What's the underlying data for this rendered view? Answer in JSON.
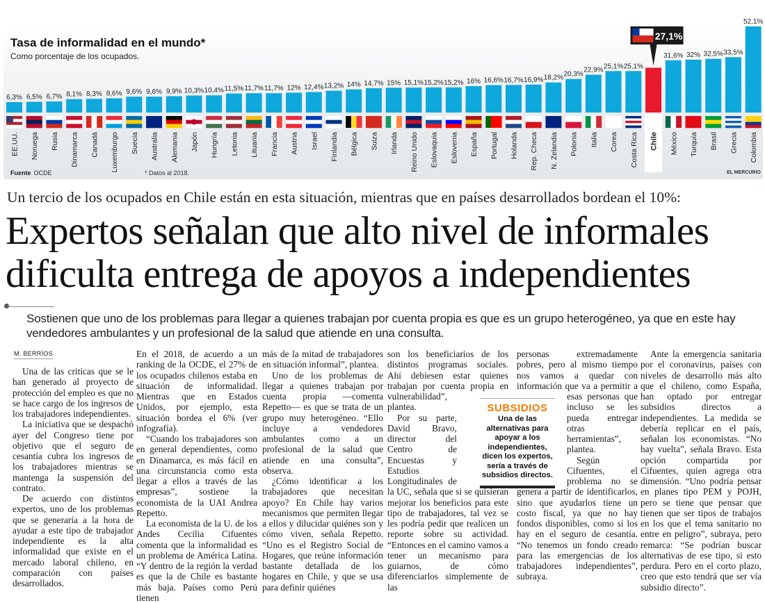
{
  "chart_data": {
    "type": "bar",
    "title": "Tasa de informalidad en el mundo*",
    "subtitle": "Como porcentaje de los ocupados.",
    "source_label": "Fuente",
    "source": "OCDE",
    "note": "* Datos al 2018.",
    "credit": "EL MERCURIO",
    "ylim": [
      0,
      55
    ],
    "bar_color": "#0fa8dc",
    "highlight_color": "#e8192c",
    "highlight": "Chile",
    "highlight_label": "27,1%",
    "categories": [
      "EE.UU.",
      "Noruega",
      "Rusia",
      "Dinamarca",
      "Canadá",
      "Luxemburgo",
      "Suecia",
      "Australia",
      "Alemania",
      "Japón",
      "Hungría",
      "Letonia",
      "Lituania",
      "Francia",
      "Austria",
      "Israel",
      "Finlandia",
      "Bélgica",
      "Suiza",
      "Irlanda",
      "Reino Unido",
      "Eslovaquia",
      "Eslovenia",
      "España",
      "Portugal",
      "Holanda",
      "Rep. Checa",
      "N. Zelandia",
      "Polonia",
      "Italia",
      "Corea",
      "Costa Rica",
      "Chile",
      "México",
      "Turquía",
      "Brasil",
      "Grecia",
      "Colombia"
    ],
    "values": [
      6.3,
      6.5,
      6.7,
      8.1,
      8.3,
      8.6,
      9.6,
      9.6,
      9.9,
      10.3,
      10.4,
      11.5,
      11.7,
      11.7,
      12,
      12.4,
      13.2,
      14,
      14.7,
      15,
      15.1,
      15.2,
      15.2,
      16,
      16.6,
      16.7,
      16.9,
      18.2,
      20.3,
      22.9,
      25.1,
      25.1,
      27.1,
      31.6,
      32,
      32.5,
      33.5,
      52.1
    ],
    "value_labels": [
      "6,3%",
      "6,5%",
      "6,7%",
      "8,1%",
      "8,3%",
      "8,6%",
      "9,6%",
      "9,6%",
      "9,9%",
      "10,3%",
      "10,4%",
      "11,5%",
      "11,7%",
      "11,7%",
      "12%",
      "12,4%",
      "13,2%",
      "14%",
      "14,7%",
      "15%",
      "15,1%",
      "15,2%",
      "15,2%",
      "16%",
      "16,6%",
      "16,7%",
      "16,9%",
      "18,2%",
      "20,3%",
      "22,9%",
      "25,1%",
      "25,1%",
      "",
      "31,6%",
      "32%",
      "32,5%",
      "33,5%",
      "52,1%"
    ],
    "flags": [
      [
        "h",
        "#b22234",
        "#ffffff",
        "#b22234",
        "#ffffff"
      ],
      [
        "h",
        "#ba0c2f",
        "#00205b",
        "#ba0c2f"
      ],
      [
        "h",
        "#ffffff",
        "#0039a6",
        "#d52b1e"
      ],
      [
        "h",
        "#c8102e",
        "#ffffff",
        "#c8102e"
      ],
      [
        "v",
        "#d52b1e",
        "#ffffff",
        "#d52b1e"
      ],
      [
        "h",
        "#ed2939",
        "#ffffff",
        "#00a1de"
      ],
      [
        "h",
        "#006aa7",
        "#fecc00",
        "#006aa7"
      ],
      [
        "h",
        "#00247d",
        "#00247d"
      ],
      [
        "h",
        "#000000",
        "#dd0000",
        "#ffce00"
      ],
      [
        "h",
        "#ffffff",
        "#bc002d",
        "#ffffff"
      ],
      [
        "h",
        "#cd2a3e",
        "#ffffff",
        "#436f4d"
      ],
      [
        "h",
        "#9e3039",
        "#ffffff",
        "#9e3039"
      ],
      [
        "h",
        "#fdb913",
        "#006a44",
        "#c1272d"
      ],
      [
        "v",
        "#0055a4",
        "#ffffff",
        "#ef4135"
      ],
      [
        "h",
        "#ed2939",
        "#ffffff",
        "#ed2939"
      ],
      [
        "h",
        "#0038b8",
        "#ffffff",
        "#0038b8"
      ],
      [
        "h",
        "#ffffff",
        "#003580",
        "#ffffff"
      ],
      [
        "v",
        "#000000",
        "#fdda24",
        "#ef3340"
      ],
      [
        "h",
        "#d52b1e",
        "#d52b1e"
      ],
      [
        "v",
        "#169b62",
        "#ffffff",
        "#ff883e"
      ],
      [
        "h",
        "#012169",
        "#c8102e",
        "#012169"
      ],
      [
        "h",
        "#ffffff",
        "#0b4ea2",
        "#ee1c25"
      ],
      [
        "h",
        "#ffffff",
        "#0000ff",
        "#ff0000"
      ],
      [
        "h",
        "#aa151b",
        "#f1bf00",
        "#aa151b"
      ],
      [
        "v",
        "#006600",
        "#ff0000",
        "#ff0000"
      ],
      [
        "h",
        "#ae1c28",
        "#ffffff",
        "#21468b"
      ],
      [
        "h",
        "#ffffff",
        "#d7141a"
      ],
      [
        "h",
        "#00247d",
        "#00247d"
      ],
      [
        "h",
        "#ffffff",
        "#dc143c"
      ],
      [
        "v",
        "#009246",
        "#ffffff",
        "#ce2b37"
      ],
      [
        "h",
        "#ffffff",
        "#ffffff"
      ],
      [
        "h",
        "#002b7f",
        "#ffffff",
        "#ce1126",
        "#ffffff",
        "#002b7f"
      ],
      [],
      [
        "v",
        "#006847",
        "#ffffff",
        "#ce1126"
      ],
      [
        "h",
        "#e30a17",
        "#e30a17"
      ],
      [
        "h",
        "#009c3b",
        "#ffdf00",
        "#009c3b"
      ],
      [
        "h",
        "#0d5eaf",
        "#ffffff",
        "#0d5eaf",
        "#ffffff",
        "#0d5eaf"
      ],
      [
        "h",
        "#fcd116",
        "#fcd116",
        "#003893",
        "#ce1126"
      ]
    ]
  },
  "article": {
    "kicker": "Un tercio de los ocupados en Chile están en esta situación, mientras que en países desarrollados bordean el 10%:",
    "headline_1": "Expertos señalan que alto nivel de informales",
    "headline_2": "dificulta entrega de apoyos a independientes",
    "deck": "Sostienen que uno de los problemas para llegar a quienes trabajan por cuenta propia es que es un grupo heterogéneo, ya que en este hay vendedores ambulantes y un profesional de la salud que atiende en una consulta.",
    "byline": "M. BERRÍOS",
    "col1": [
      "Una de las criticas que se le han generado al proyecto de protección del empleo es que no se hace cargo de los ingresos de los trabajadores independientes.",
      "La iniciativa que se despachó ayer del Congreso tiene por objetivo que el seguro de cesantía cubra los ingresos de los trabajadores mientras se mantenga la suspensión del contrato.",
      "De acuerdo con distintos expertos, uno de los problemas que se generaría a la hora de ayudar a este tipo de trabajador independiente es la alta informalidad que existe en el mercado laboral chileno, en comparación con países desarrollados."
    ],
    "col2": [
      "En el 2018, de acuerdo a un ranking de la OCDE, el 27% de los ocupados chilenos estaba en situación de informalidad. Mientras que en Estados Unidos, por ejemplo, esta situación bordea el 6% (ver infografía).",
      "“Cuando los trabajadores son en general dependientes, como en Dinamarca, es más fácil en una circunstancia como esta llegar a ellos a través de las empresas”, sostiene la economista de la UAI Andrea Repetto.",
      "La economista de la U. de los Andes Cecilia Cifuentes comenta que la informalidad es un problema de América Latina. “Y dentro de la región la verdad es que la de Chile es bastante más baja. Países como Perú tienen"
    ],
    "col3": [
      "más de la mitad de trabajadores en situación informal”, plantea.",
      "Uno de los problemas de llegar a quienes trabajan por cuenta propia —comenta Repetto— es que se trata de un grupo muy heterogéneo. “Ello incluye a vendedores ambulantes como a un profesional de la salud que atiende en una consulta”, observa.",
      "¿Cómo identificar a los trabajadores que necesitan apoyo? En Chile hay varios mecanismos que permiten llegar a ellos y dilucidar quiénes son y cómo viven, señala Repetto. “Uno es el Registro Social de Hogares, que reúne información bastante detallada de los hogares en Chile, y que se usa para definir quiénes"
    ],
    "col4": [
      "son los beneficiarios de los distintos programas sociales. Ahí debiesen estar quienes trabajan por cuenta propia en vulnerabilidad”, plantea.",
      "Por su parte, David Bravo, director del Centro de Encuestas y Estudios Longitudinales de la UC, señala que si se quisieran mejorar los beneficios para este tipo de trabajadores, tal vez se les podría pedir que realicen un reporte sobre su actividad. “Entonces en el camino vamos a tener un mecanismo para guiarnos, de cómo diferenciarlos simplemente de las"
    ],
    "col5": [
      "personas extremadamente pobres, pero al mismo tiempo nos vamos a quedar con información que va a permitir a esas personas que incluso se les pueda entregar otras herramientas”, plantea.",
      "Según Cifuentes, el problema no se genera a partir de identificarlos, sino que ayudarlos tiene un costo fiscal, ya que no hay fondos disponibles, como sí los hay en el seguro de cesantía. “No tenemos un fondo creado para las emergencias de los trabajadores independientes”, subraya."
    ],
    "col6": [
      "Ante la emergencia sanitaria por el coronavirus, países con niveles de desarrollo más alto que el chileno, como España, han optado por entregar subsidios directos a independientes. La medida se debería replicar en el país, señalan los economistas. “No hay vuelta”, señala Bravo. Esta opción compartida por Cifuentes, quien agrega otra dimensión. “Uno podría pensar en planes tipo PEM y POJH, pero se tiene que pensar que tienen que ser tipos de trabajos en los que el tema sanitario no entre en peligro”, subraya, pero remarca: “Se podrían buscar alternativas de ese tipo, si esto perdura. Pero en el corto plazo, creo que esto tendrá que ser vía subsidio directo”."
    ],
    "box": {
      "title": "SUBSIDIOS",
      "text": "Una de las alternativas para apoyar a los independientes, dicen los expertos, sería a través de subsidios directos."
    }
  }
}
